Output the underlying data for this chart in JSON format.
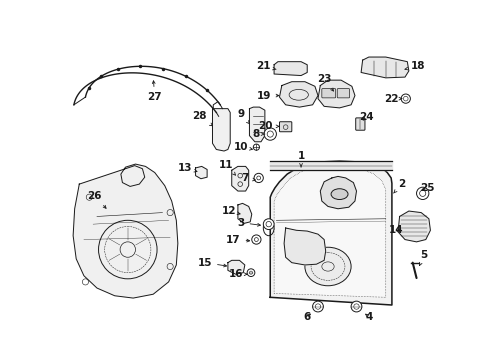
{
  "bg_color": "#ffffff",
  "lc": "#1a1a1a",
  "lw": 0.7,
  "fs": 7.5,
  "figsize": [
    4.89,
    3.6
  ],
  "dpi": 100
}
